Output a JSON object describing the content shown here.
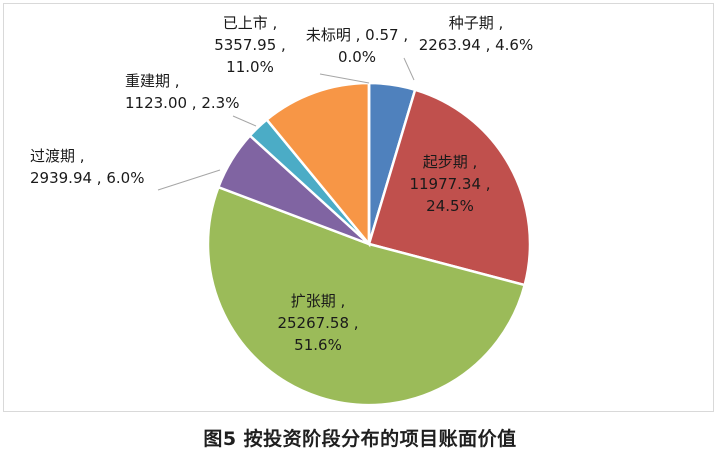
{
  "caption": "图5  按投资阶段分布的项目账面价值",
  "chart_data": {
    "type": "pie",
    "title": "",
    "slices": [
      {
        "name": "种子期",
        "value": 2263.94,
        "value_label": "2263.94",
        "percent": "4.6%",
        "color": "#4f81bd"
      },
      {
        "name": "起步期",
        "value": 11977.34,
        "value_label": "11977.34",
        "percent": "24.5%",
        "color": "#c0504d"
      },
      {
        "name": "扩张期",
        "value": 25267.58,
        "value_label": "25267.58",
        "percent": "51.6%",
        "color": "#9bbb59"
      },
      {
        "name": "过渡期",
        "value": 2939.94,
        "value_label": "2939.94",
        "percent": "6.0%",
        "color": "#8064a2"
      },
      {
        "name": "重建期",
        "value": 1123.0,
        "value_label": "1123.00",
        "percent": "2.3%",
        "color": "#4bacc6"
      },
      {
        "name": "已上市",
        "value": 5357.95,
        "value_label": "5357.95",
        "percent": "11.0%",
        "color": "#f79646"
      },
      {
        "name": "未标明",
        "value": 0.57,
        "value_label": "0.57",
        "percent": "0.0%",
        "color": "#2c4d75"
      }
    ]
  }
}
